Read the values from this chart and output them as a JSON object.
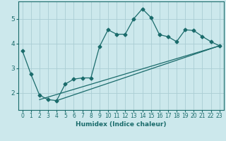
{
  "xlabel": "Humidex (Indice chaleur)",
  "bg_color": "#cce8ec",
  "grid_color": "#aacdd4",
  "line_color": "#1a6b6b",
  "xlim": [
    -0.5,
    23.5
  ],
  "ylim": [
    1.3,
    5.7
  ],
  "xticks": [
    0,
    1,
    2,
    3,
    4,
    5,
    6,
    7,
    8,
    9,
    10,
    11,
    12,
    13,
    14,
    15,
    16,
    17,
    18,
    19,
    20,
    21,
    22,
    23
  ],
  "yticks": [
    2,
    3,
    4,
    5
  ],
  "series1_x": [
    0,
    1,
    2,
    3,
    4,
    5,
    6,
    7,
    8,
    9,
    10,
    11,
    12,
    13,
    14,
    15,
    16,
    17,
    18,
    19,
    20,
    21,
    22,
    23
  ],
  "series1_y": [
    3.7,
    2.75,
    1.9,
    1.72,
    1.68,
    2.35,
    2.55,
    2.6,
    2.6,
    3.87,
    4.55,
    4.37,
    4.37,
    5.0,
    5.4,
    5.05,
    4.35,
    4.27,
    4.07,
    4.55,
    4.52,
    4.28,
    4.07,
    3.9
  ],
  "line2_x": [
    2,
    23
  ],
  "line2_y": [
    1.72,
    3.9
  ],
  "line3_x": [
    4,
    23
  ],
  "line3_y": [
    1.68,
    3.9
  ]
}
